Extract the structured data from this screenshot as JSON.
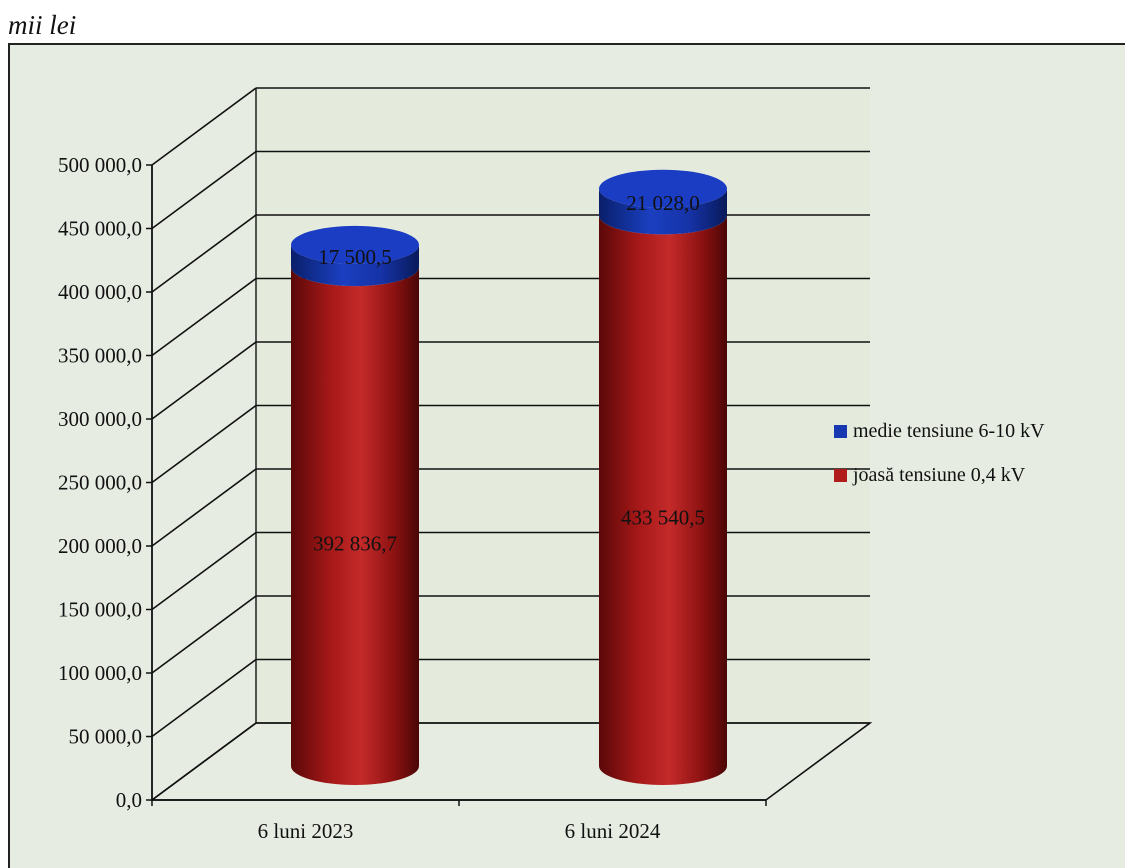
{
  "unit_label": "mii lei",
  "chart_data": {
    "type": "bar",
    "style": "3d-stacked-cylinder",
    "categories": [
      "6 luni 2023",
      "6 luni 2024"
    ],
    "series": [
      {
        "name": "joasă tensiune 0,4 kV",
        "values": [
          392836.7,
          433540.5
        ],
        "labels": [
          "392 836,7",
          "433 540,5"
        ],
        "color": "#b01c1c"
      },
      {
        "name": "medie tensiune 6-10 kV",
        "values": [
          17500.5,
          21028.0
        ],
        "labels": [
          "17 500,5",
          "21 028,0"
        ],
        "color": "#1638b0"
      }
    ],
    "y_ticks": [
      "0,0",
      "50 000,0",
      "100 000,0",
      "150 000,0",
      "200 000,0",
      "250 000,0",
      "300 000,0",
      "350 000,0",
      "400 000,0",
      "450 000,0",
      "500 000,0"
    ],
    "ylim": [
      0,
      500000
    ],
    "grid": true,
    "legend_position": "right",
    "legend_order": [
      "medie tensiune 6-10 kV",
      "joasă tensiune 0,4 kV"
    ]
  }
}
